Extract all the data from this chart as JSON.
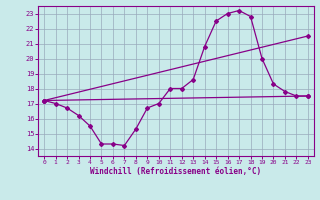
{
  "xlabel": "Windchill (Refroidissement éolien,°C)",
  "xlim": [
    -0.5,
    23.5
  ],
  "ylim": [
    13.5,
    23.5
  ],
  "yticks": [
    14,
    15,
    16,
    17,
    18,
    19,
    20,
    21,
    22,
    23
  ],
  "xticks": [
    0,
    1,
    2,
    3,
    4,
    5,
    6,
    7,
    8,
    9,
    10,
    11,
    12,
    13,
    14,
    15,
    16,
    17,
    18,
    19,
    20,
    21,
    22,
    23
  ],
  "bg_color": "#c9eaea",
  "line_color": "#880088",
  "grid_color": "#99aabb",
  "line1_x": [
    0,
    1,
    2,
    3,
    4,
    5,
    6,
    7,
    8,
    9,
    10,
    11,
    12,
    13,
    14,
    15,
    16,
    17,
    18,
    19,
    20,
    21,
    22,
    23
  ],
  "line1_y": [
    17.2,
    17.0,
    16.7,
    16.2,
    15.5,
    14.3,
    14.3,
    14.2,
    15.3,
    16.7,
    17.0,
    18.0,
    18.0,
    18.6,
    20.8,
    22.5,
    23.0,
    23.2,
    22.8,
    20.0,
    18.3,
    17.8,
    17.5,
    17.5
  ],
  "line2_x": [
    0,
    23
  ],
  "line2_y": [
    17.2,
    17.5
  ],
  "line3_x": [
    0,
    23
  ],
  "line3_y": [
    17.2,
    21.5
  ]
}
